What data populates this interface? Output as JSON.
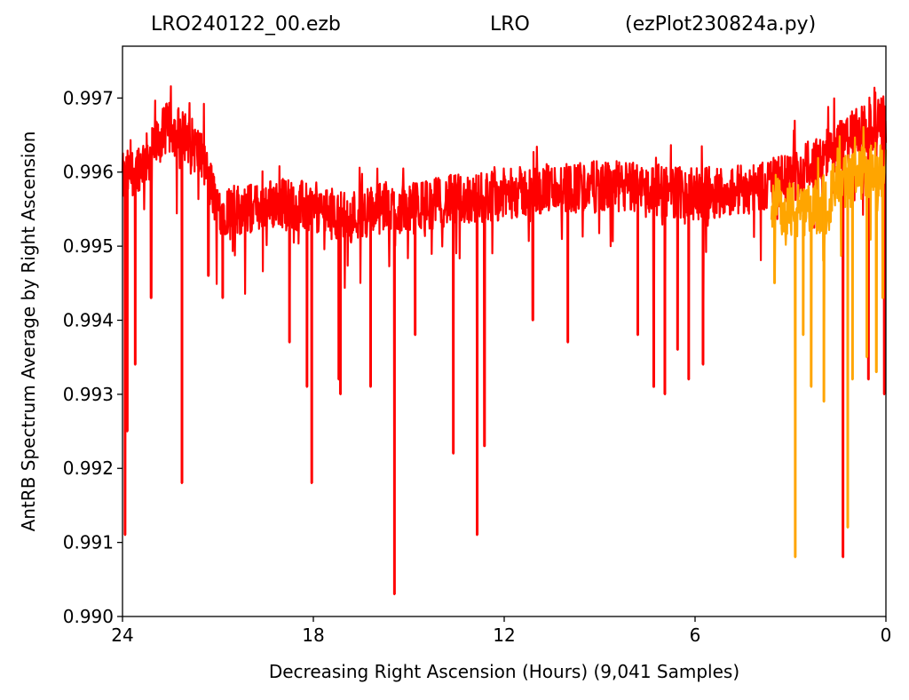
{
  "chart_data": {
    "type": "line",
    "title": {
      "file": "LRO240122_00.ezb",
      "station": "LRO",
      "program": "(ezPlot230824a.py)"
    },
    "xlabel": "Decreasing Right Ascension (Hours) (9,041 Samples)",
    "ylabel": "AntRB Spectrum Average by Right Ascension",
    "xlim": [
      24,
      0
    ],
    "ylim": [
      0.99,
      0.9977
    ],
    "x_ticks": [
      {
        "value": 24,
        "label": "24"
      },
      {
        "value": 18,
        "label": "18"
      },
      {
        "value": 12,
        "label": "12"
      },
      {
        "value": 6,
        "label": "6"
      },
      {
        "value": 0,
        "label": "0"
      }
    ],
    "y_ticks": [
      {
        "value": 0.99,
        "label": "0.990"
      },
      {
        "value": 0.991,
        "label": "0.991"
      },
      {
        "value": 0.992,
        "label": "0.992"
      },
      {
        "value": 0.993,
        "label": "0.993"
      },
      {
        "value": 0.994,
        "label": "0.994"
      },
      {
        "value": 0.995,
        "label": "0.995"
      },
      {
        "value": 0.996,
        "label": "0.996"
      },
      {
        "value": 0.997,
        "label": "0.997"
      }
    ],
    "grid": false,
    "series": [
      {
        "color": "#ff0000",
        "x_range": [
          24,
          0
        ],
        "baseline": [
          [
            24.0,
            0.9959
          ],
          [
            23.2,
            0.9962
          ],
          [
            22.6,
            0.9966
          ],
          [
            22.0,
            0.9965
          ],
          [
            21.5,
            0.9962
          ],
          [
            21.0,
            0.9955
          ],
          [
            20.0,
            0.9955
          ],
          [
            19.0,
            0.9956
          ],
          [
            18.0,
            0.9955
          ],
          [
            17.0,
            0.9954
          ],
          [
            16.0,
            0.9955
          ],
          [
            15.0,
            0.9955
          ],
          [
            14.0,
            0.9956
          ],
          [
            12.0,
            0.9957
          ],
          [
            10.0,
            0.9958
          ],
          [
            8.0,
            0.9958
          ],
          [
            6.0,
            0.9957
          ],
          [
            4.0,
            0.9958
          ],
          [
            3.0,
            0.9959
          ],
          [
            2.0,
            0.9962
          ],
          [
            1.0,
            0.9965
          ],
          [
            0.0,
            0.9967
          ]
        ],
        "noise_amplitude": 0.00035,
        "dips": [
          [
            23.92,
            0.9911
          ],
          [
            23.85,
            0.9925
          ],
          [
            23.6,
            0.9934
          ],
          [
            23.1,
            0.9943
          ],
          [
            22.13,
            0.9918
          ],
          [
            21.3,
            0.9946
          ],
          [
            20.85,
            0.9943
          ],
          [
            18.75,
            0.9937
          ],
          [
            18.2,
            0.9931
          ],
          [
            18.05,
            0.9918
          ],
          [
            17.2,
            0.9932
          ],
          [
            17.15,
            0.993
          ],
          [
            16.2,
            0.9931
          ],
          [
            15.45,
            0.9903
          ],
          [
            14.8,
            0.9938
          ],
          [
            13.6,
            0.9922
          ],
          [
            12.85,
            0.9911
          ],
          [
            12.62,
            0.9923
          ],
          [
            11.1,
            0.994
          ],
          [
            10.0,
            0.9937
          ],
          [
            7.8,
            0.9938
          ],
          [
            7.3,
            0.9931
          ],
          [
            6.95,
            0.993
          ],
          [
            6.55,
            0.9936
          ],
          [
            6.2,
            0.9932
          ],
          [
            5.75,
            0.9934
          ],
          [
            1.35,
            0.9908
          ],
          [
            0.55,
            0.9932
          ],
          [
            0.05,
            0.993
          ]
        ]
      },
      {
        "color": "#ffa500",
        "x_range": [
          3.6,
          0
        ],
        "baseline": [
          [
            3.6,
            0.9956
          ],
          [
            3.0,
            0.9955
          ],
          [
            2.5,
            0.9954
          ],
          [
            2.0,
            0.9956
          ],
          [
            1.5,
            0.9958
          ],
          [
            1.0,
            0.9959
          ],
          [
            0.5,
            0.996
          ],
          [
            0.0,
            0.996
          ]
        ],
        "noise_amplitude": 0.0004,
        "dips": [
          [
            3.5,
            0.9945
          ],
          [
            2.85,
            0.9908
          ],
          [
            2.6,
            0.9938
          ],
          [
            2.35,
            0.9931
          ],
          [
            1.95,
            0.9929
          ],
          [
            1.2,
            0.9912
          ],
          [
            1.05,
            0.9932
          ],
          [
            0.6,
            0.9935
          ],
          [
            0.3,
            0.9933
          ],
          [
            0.1,
            0.9943
          ]
        ]
      }
    ]
  }
}
